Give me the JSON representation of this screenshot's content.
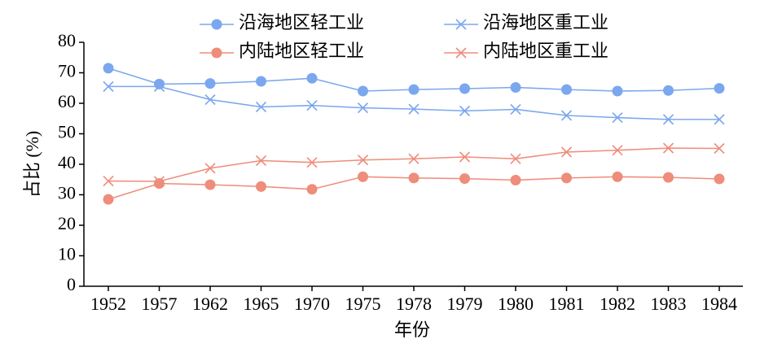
{
  "chart_data": {
    "type": "line",
    "x_label": "年份",
    "y_label": "占比 (%)",
    "categories": [
      "1952",
      "1957",
      "1962",
      "1965",
      "1970",
      "1975",
      "1978",
      "1979",
      "1980",
      "1981",
      "1982",
      "1983",
      "1984"
    ],
    "series": [
      {
        "name": "沿海地区轻工业",
        "color": "#7ba7ee",
        "marker": "circle",
        "values": [
          71.5,
          66.3,
          66.5,
          67.2,
          68.2,
          64.0,
          64.5,
          64.8,
          65.2,
          64.5,
          64.0,
          64.2,
          64.9
        ]
      },
      {
        "name": "沿海地区重工业",
        "color": "#7ba7ee",
        "marker": "x",
        "values": [
          65.5,
          65.5,
          61.2,
          58.8,
          59.3,
          58.5,
          58.1,
          57.5,
          58.0,
          56.0,
          55.3,
          54.7,
          54.7
        ]
      },
      {
        "name": "内陆地区轻工业",
        "color": "#ee8d7b",
        "marker": "circle",
        "values": [
          28.5,
          33.7,
          33.3,
          32.7,
          31.8,
          35.9,
          35.5,
          35.3,
          34.8,
          35.5,
          35.9,
          35.7,
          35.2
        ]
      },
      {
        "name": "内陆地区重工业",
        "color": "#ee8d7b",
        "marker": "x",
        "values": [
          34.5,
          34.4,
          38.7,
          41.2,
          40.6,
          41.4,
          41.8,
          42.4,
          41.8,
          44.0,
          44.6,
          45.3,
          45.2
        ]
      }
    ],
    "ylim": [
      0,
      80
    ],
    "yticks": [
      0,
      10,
      20,
      30,
      40,
      50,
      60,
      70,
      80
    ],
    "grid": false,
    "legend": "top",
    "legend_columns": 2
  }
}
